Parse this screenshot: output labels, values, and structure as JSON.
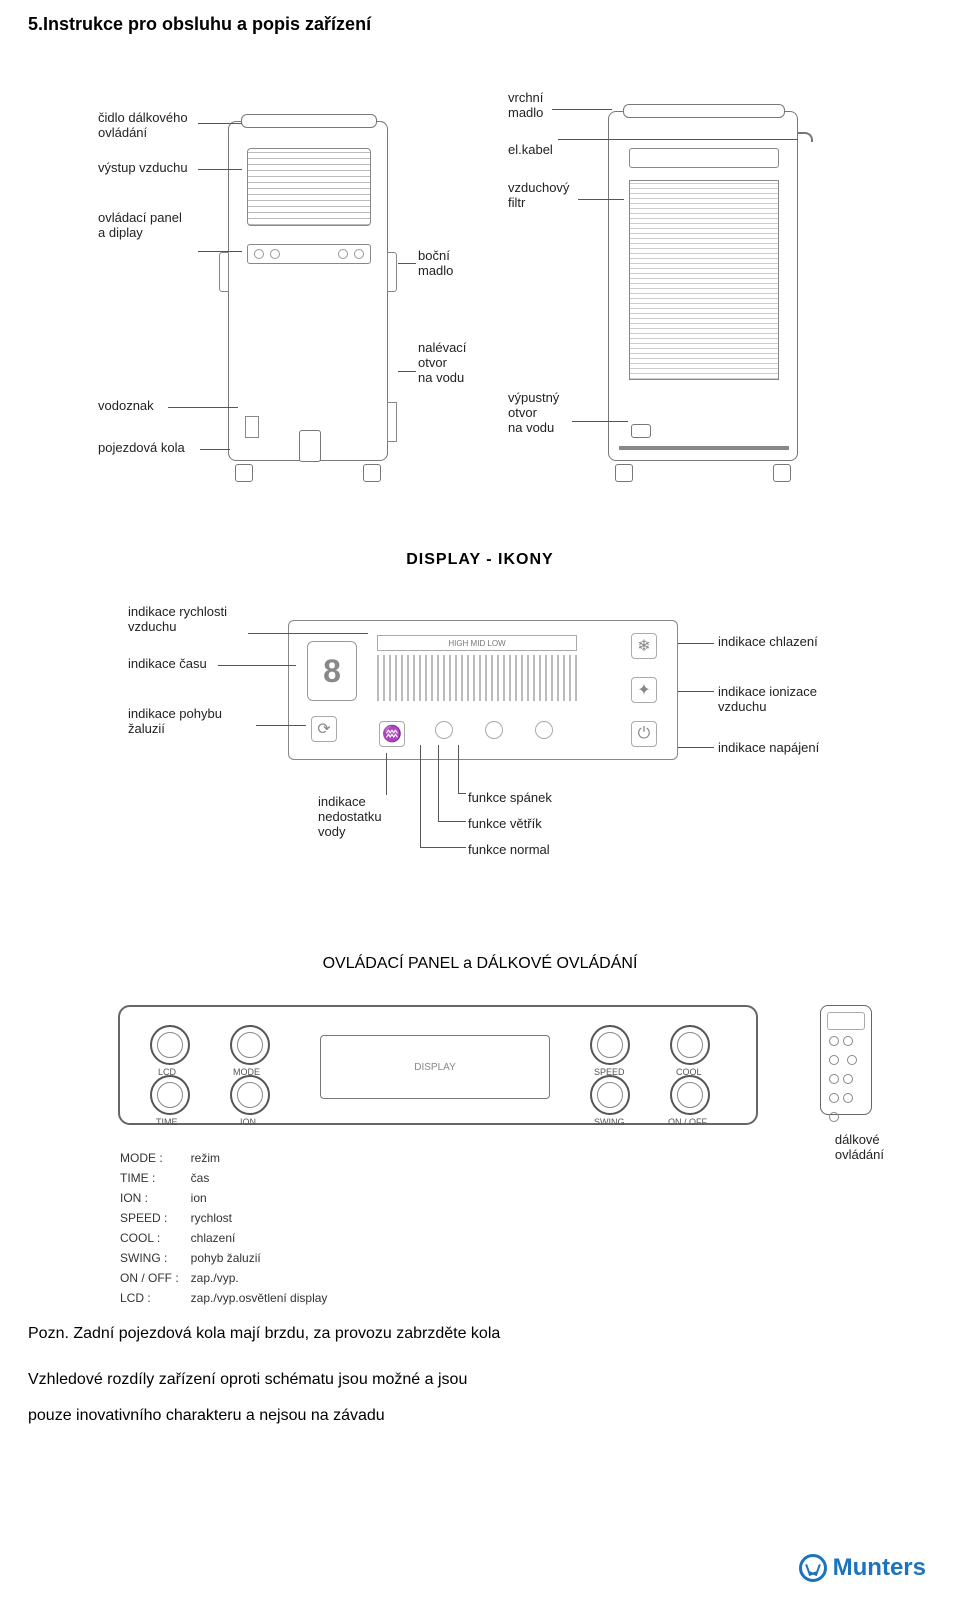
{
  "page": {
    "title": "5.Instrukce pro obsluhu a popis zařízení"
  },
  "front_labels": {
    "remote_sensor": "čidlo dálkového\novládání",
    "air_outlet": "výstup vzduchu",
    "control_panel": "ovládací panel\na diplay",
    "water_mark": "vodoznak",
    "wheels": "pojezdová kola",
    "side_handle": "boční\nmadlo",
    "fill_opening": "nalévací\notvor\nna vodu"
  },
  "back_labels": {
    "top_handle": "vrchní\nmadlo",
    "cable": "el.kabel",
    "air_filter": "vzduchový\nfiltr",
    "drain": "výpustný\notvor\nna vodu"
  },
  "display_section": {
    "title": "DISPLAY - IKONY",
    "left": {
      "speed": "indikace rychlosti\nvzduchu",
      "time": "indikace času",
      "swing": "indikace pohybu\nžaluzií"
    },
    "right": {
      "cool": "indikace chlazení",
      "ion": "indikace ionizace\nvzduchu",
      "power": "indikace napájení"
    },
    "bottom": {
      "water": "indikace\nnedostatku\nvody",
      "sleep": "funkce spánek",
      "breeze": "funkce větřík",
      "normal": "funkce normal"
    },
    "speed_labels": "HIGH  MID  LOW",
    "time_digit": "8"
  },
  "control_section": {
    "title": "OVLÁDACÍ PANEL a DÁLKOVÉ OVLÁDÁNÍ",
    "knobs": {
      "lcd": "LCD",
      "mode": "MODE",
      "time": "TIME",
      "ion": "ION",
      "speed": "SPEED",
      "cool": "COOL",
      "swing": "SWING",
      "onoff": "ON / OFF",
      "display": "DISPLAY"
    },
    "remote_label": "dálkové\novládání",
    "glossary": [
      [
        "MODE :",
        "režim"
      ],
      [
        "TIME :",
        "čas"
      ],
      [
        "ION :",
        "ion"
      ],
      [
        "SPEED :",
        "rychlost"
      ],
      [
        "COOL :",
        "chlazení"
      ],
      [
        "SWING :",
        "pohyb žaluzií"
      ],
      [
        "ON / OFF :",
        "zap./vyp."
      ],
      [
        "LCD :",
        "zap./vyp.osvětlení display"
      ]
    ]
  },
  "footer": {
    "note": "Pozn. Zadní pojezdová kola mají brzdu, za provozu zabrzděte kola",
    "l1": "Vzhledové rozdíly zařízení oproti schématu jsou možné a jsou",
    "l2": "pouze inovativního charakteru a nejsou na závadu"
  },
  "logo": {
    "brand": "Munters",
    "color": "#1c74bc"
  }
}
